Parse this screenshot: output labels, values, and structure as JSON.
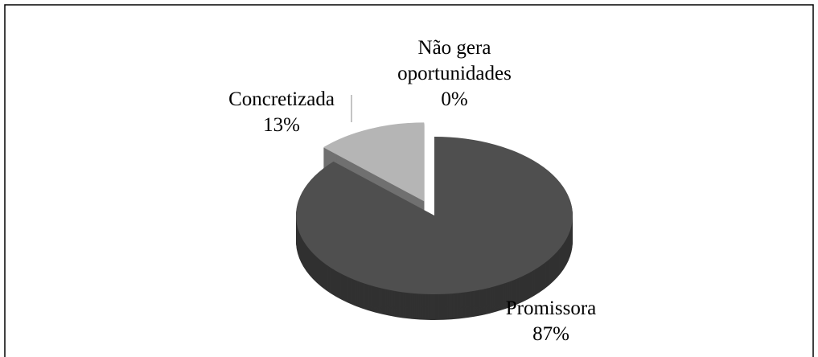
{
  "chart_data": {
    "type": "pie",
    "categories": [
      "Promissora",
      "Concretizada",
      "Não gera oportunidades"
    ],
    "values": [
      87,
      13,
      0
    ],
    "value_labels": [
      "87%",
      "13%",
      "0%"
    ],
    "colors": [
      "#4f4f4f",
      "#b5b5b5",
      "#9a9a9a"
    ]
  }
}
